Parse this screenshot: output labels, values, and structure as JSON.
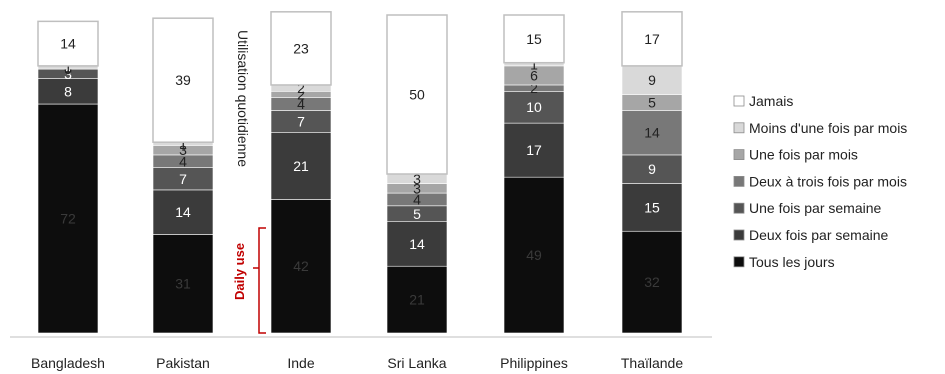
{
  "chart_data": {
    "type": "bar",
    "stacked": true,
    "categories": [
      "Bangladesh",
      "Pakistan",
      "Inde",
      "Sri Lanka",
      "Philippines",
      "Thaïlande"
    ],
    "series": [
      {
        "name": "Tous les jours",
        "color": "#0d0d0d",
        "values": [
          72,
          31,
          42,
          21,
          49,
          32
        ]
      },
      {
        "name": "Deux fois par semaine",
        "color": "#3b3b3b",
        "values": [
          8,
          14,
          21,
          14,
          17,
          15
        ]
      },
      {
        "name": "Une fois par semaine",
        "color": "#555555",
        "values": [
          3,
          7,
          7,
          5,
          10,
          9
        ]
      },
      {
        "name": "Deux à trois fois par mois",
        "color": "#787878",
        "values": [
          0,
          4,
          4,
          4,
          2,
          14
        ]
      },
      {
        "name": "Une fois par mois",
        "color": "#a6a6a6",
        "values": [
          0,
          3,
          2,
          3,
          6,
          5
        ]
      },
      {
        "name": "Moins d'une fois par mois",
        "color": "#d9d9d9",
        "values": [
          1,
          1,
          2,
          3,
          1,
          9
        ]
      },
      {
        "name": "Jamais",
        "color": "#ffffff",
        "values": [
          14,
          39,
          23,
          50,
          15,
          17
        ]
      }
    ],
    "legend": [
      "Jamais",
      "Moins d'une fois par mois",
      "Une fois par mois",
      "Deux à trois fois par mois",
      "Une fois par semaine",
      "Deux fois par semaine",
      "Tous les jours"
    ],
    "legend_position": "right",
    "ylim": [
      0,
      100
    ],
    "annotations": {
      "daily_use_label": "Daily use",
      "daily_use_color": "#c00000",
      "vertical_label": "Utilisation quotidienne"
    }
  }
}
